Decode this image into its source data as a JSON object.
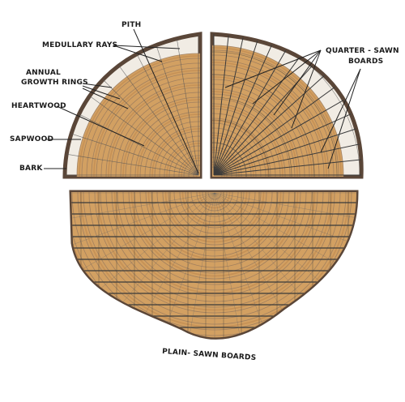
{
  "labels": {
    "pith": "PITH",
    "medullary_rays": "MEDULLARY RAYS",
    "annual_growth_rings_line1": "ANNUAL",
    "annual_growth_rings_line2": "GROWTH RINGS",
    "heartwood": "HEARTWOOD",
    "sapwood": "SAPWOOD",
    "bark": "BARK",
    "quarter_sawn_line1": "QUARTER - SAWN",
    "quarter_sawn_line2": "BOARDS",
    "plain_sawn": "PLAIN- SAWN BOARDS"
  },
  "colors": {
    "bark": "#5a4638",
    "sapwood": "#f1ece4",
    "heartwood": "#d2a062",
    "heartwood_dark": "#b9814a",
    "ring": "#9a7a5e",
    "board_line": "#3a3a3a",
    "leader": "#222222"
  }
}
